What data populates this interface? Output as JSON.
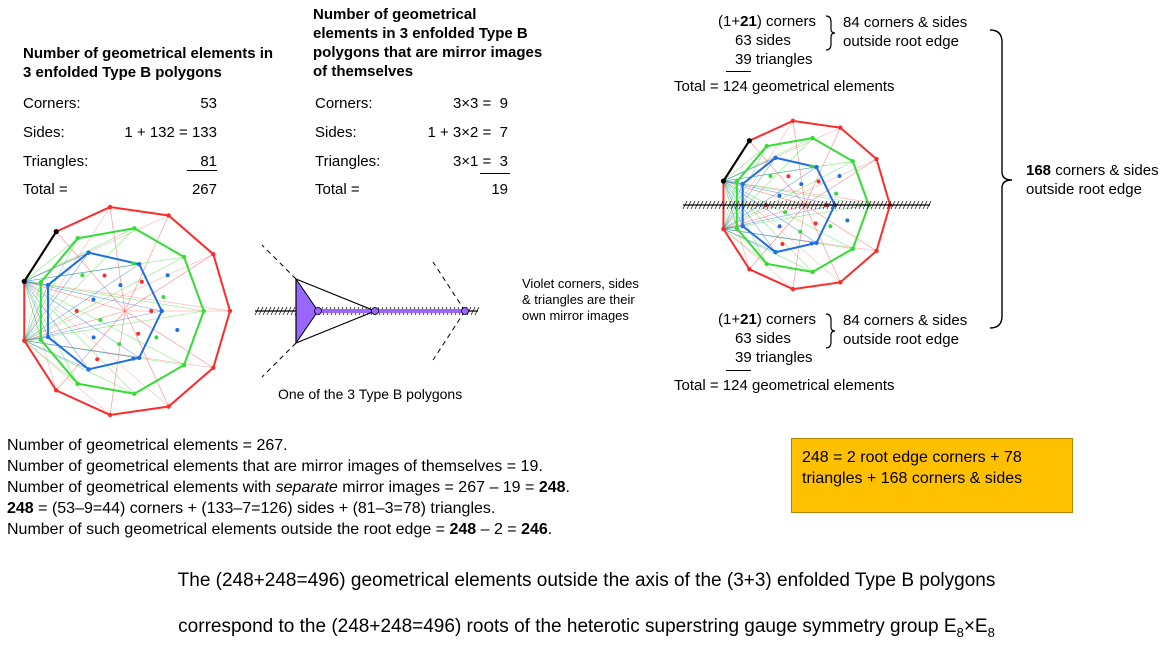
{
  "left_table": {
    "heading": "Number of geometrical elements in 3 enfolded Type B polygons",
    "rows": [
      {
        "label": "Corners:",
        "value": "53"
      },
      {
        "label": "Sides:",
        "value": "1 + 132 = 133"
      },
      {
        "label": "Triangles:",
        "value": "81"
      },
      {
        "label": "Total =",
        "value": "267"
      }
    ]
  },
  "mirror_table": {
    "heading": "Number of geometrical elements in 3 enfolded Type B polygons that are mirror images of themselves",
    "rows": [
      {
        "label": "Corners:",
        "value": "3×3 =  9"
      },
      {
        "label": "Sides:",
        "value": "1 + 3×2 =  7"
      },
      {
        "label": "Triangles:",
        "value": "3×1 =  3"
      },
      {
        "label": "Total =",
        "value": "19"
      }
    ]
  },
  "right_top": {
    "line1_pre": "(1+",
    "line1_bold": "21",
    "line1_post": ") corners",
    "line2": "63 sides",
    "line3": "39 triangles",
    "brace_label": "84 corners & sides outside root edge",
    "total": "Total = 124 geometrical elements"
  },
  "right_bottom": {
    "line1_pre": "(1+",
    "line1_bold": "21",
    "line1_post": ") corners",
    "line2": "63 sides",
    "line3": "39 triangles",
    "brace_label": "84 corners & sides outside root edge",
    "total": "Total = 124 geometrical elements"
  },
  "big_brace": {
    "bold": "168",
    "text": " corners & sides outside root edge"
  },
  "violet_note": "Violet corners, sides & triangles are their own mirror images",
  "polygon_caption": "One of the 3 Type B polygons",
  "bottom_lines": [
    {
      "pre": "Number of geometrical elements = 267."
    },
    {
      "pre": "Number of geometrical elements that are mirror images of themselves = 19."
    },
    {
      "pre": "Number of geometrical elements with ",
      "italic": "separate",
      "post": " mirror images = 267 – 19 = ",
      "bold": "248",
      "post2": "."
    },
    {
      "bold_lead": "248",
      "pre": " = (53–9=44) corners + (133–7=126) sides + (81–3=78) triangles."
    },
    {
      "pre": "Number of such geometrical elements outside the root edge = ",
      "bold": "248",
      "post": " – 2 = ",
      "bold2": "246",
      "post2": "."
    }
  ],
  "yellow_box": "248 = 2 root edge corners + 78 triangles + 168 corners & sides",
  "footer": {
    "line1": "The (248+248=496) geometrical elements outside the axis of the (3+3) enfolded Type B polygons",
    "line2_pre": "correspond to the (248+248=496) roots of the heterotic superstring gauge symmetry group E",
    "sub1": "8",
    "times": "×E",
    "sub2": "8"
  },
  "colors": {
    "outer_polygon": "#ff2a2a",
    "middle_polygon": "#33dd33",
    "inner_polygon": "#1f6fe0",
    "violet": "#9966ff",
    "box_fill": "#ffc000"
  }
}
